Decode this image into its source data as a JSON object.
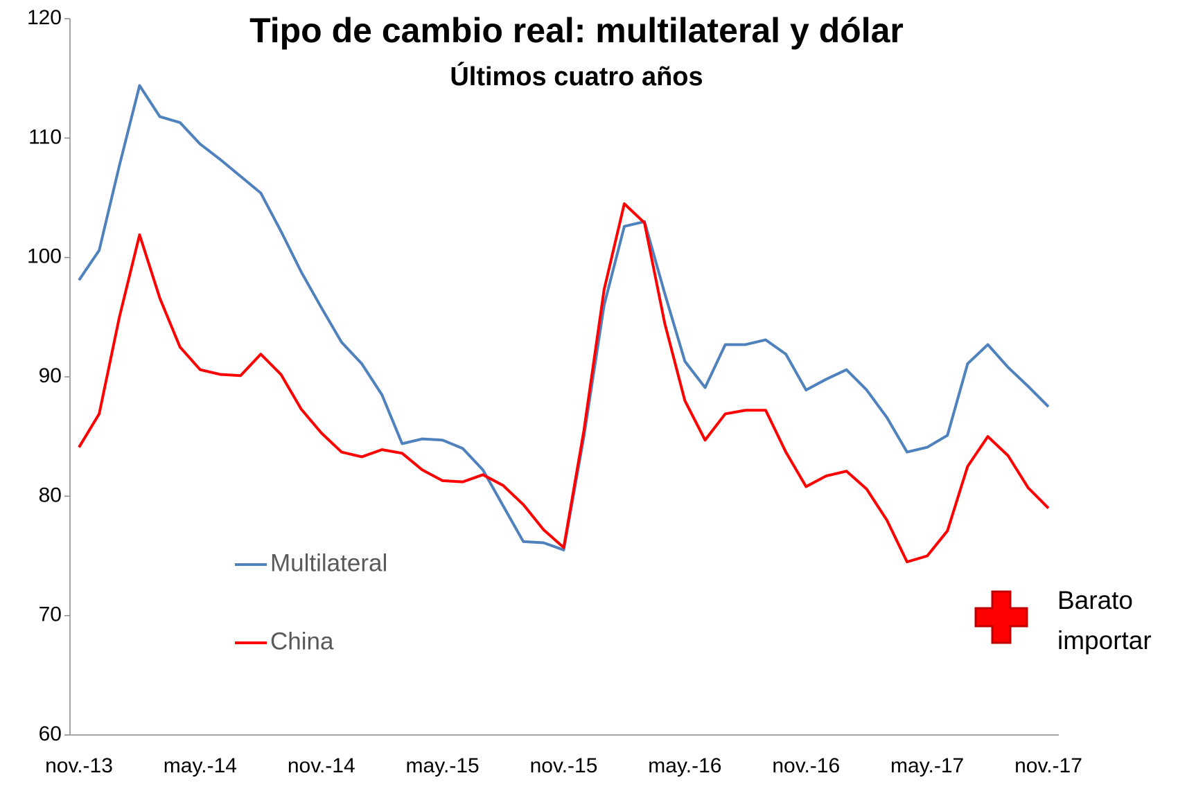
{
  "chart_data": {
    "type": "line",
    "title": "Tipo de cambio real: multilateral y dólar",
    "subtitle": "Últimos cuatro años",
    "categories": [
      "nov.-13",
      null,
      null,
      null,
      null,
      null,
      "may.-14",
      null,
      null,
      null,
      null,
      null,
      "nov.-14",
      null,
      null,
      null,
      null,
      null,
      "may.-15",
      null,
      null,
      null,
      null,
      null,
      "nov.-15",
      null,
      null,
      null,
      null,
      null,
      "may.-16",
      null,
      null,
      null,
      null,
      null,
      "nov.-16",
      null,
      null,
      null,
      null,
      null,
      "may.-17",
      null,
      null,
      null,
      null,
      null,
      "nov.-17"
    ],
    "series": [
      {
        "name": "Multilateral",
        "color": "#4f81bd",
        "values": [
          98.1,
          100.6,
          107.7,
          114.4,
          111.8,
          111.3,
          109.5,
          108.2,
          106.8,
          105.4,
          102.2,
          98.8,
          95.8,
          92.9,
          91.1,
          88.5,
          84.4,
          84.8,
          84.7,
          84.0,
          82.2,
          79.2,
          76.2,
          76.1,
          75.5,
          85.0,
          96.0,
          102.6,
          103.0,
          97.0,
          91.3,
          89.1,
          92.7,
          92.7,
          93.1,
          91.9,
          88.9,
          89.8,
          90.6,
          88.9,
          86.6,
          83.7,
          84.1,
          85.1,
          91.1,
          92.7,
          90.8,
          89.2,
          87.5
        ]
      },
      {
        "name": "China",
        "color": "#ff0000",
        "values": [
          84.1,
          86.9,
          95.0,
          101.9,
          96.6,
          92.5,
          90.6,
          90.2,
          90.1,
          91.9,
          90.2,
          87.3,
          85.3,
          83.7,
          83.3,
          83.9,
          83.6,
          82.2,
          81.3,
          81.2,
          81.8,
          80.9,
          79.3,
          77.2,
          75.7,
          85.5,
          97.3,
          104.5,
          102.9,
          94.5,
          88.0,
          84.7,
          86.9,
          87.2,
          87.2,
          83.7,
          80.8,
          81.7,
          82.1,
          80.6,
          78.0,
          74.5,
          75.0,
          77.1,
          82.5,
          85.0,
          83.4,
          80.7,
          79.0
        ]
      }
    ],
    "ylim": [
      60,
      120
    ],
    "yticks": [
      60,
      70,
      80,
      90,
      100,
      110,
      120
    ],
    "grid": false,
    "annotation": [
      "Barato",
      "importar"
    ]
  }
}
